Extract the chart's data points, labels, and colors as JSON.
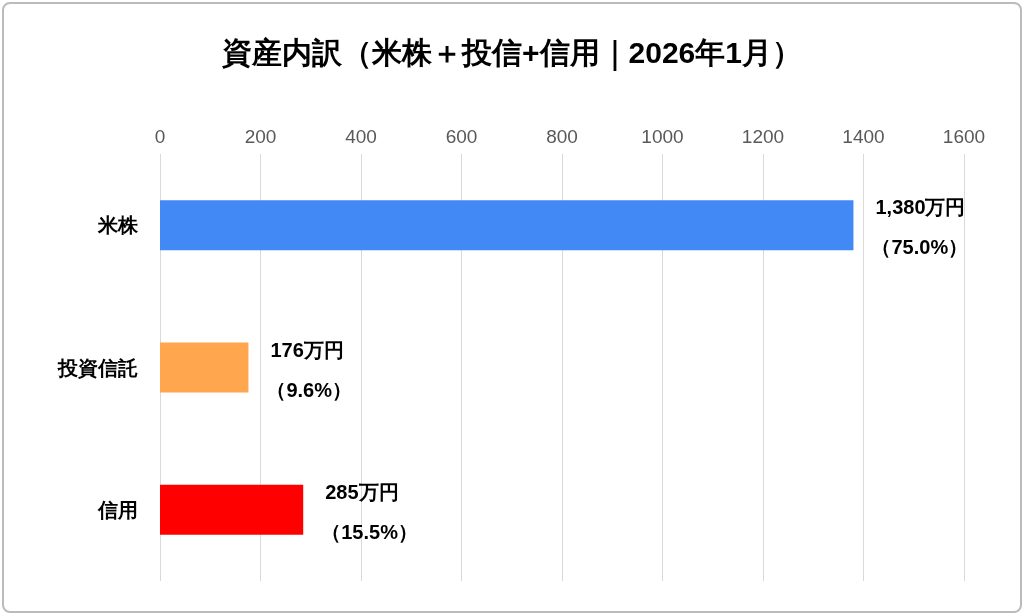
{
  "chart_data": {
    "type": "bar",
    "orientation": "horizontal",
    "title": "資産内訳（米株＋投信+信用｜2026年1月）",
    "categories": [
      "米株",
      "投資信託",
      "信用"
    ],
    "values": [
      1380,
      176,
      285
    ],
    "colors": [
      "#4289f5",
      "#ffa64f",
      "#ff0000"
    ],
    "value_labels": [
      "1,380万円",
      "176万円",
      "285万円"
    ],
    "annotations": [
      {
        "text": "（75.0%）",
        "x": 1380,
        "y": "米株"
      },
      {
        "text": "（9.6%）",
        "x": 176,
        "y": "投資信託"
      },
      {
        "text": "（15.5%）",
        "x": 285,
        "y": "信用"
      }
    ],
    "xlim": [
      0,
      1600
    ],
    "xticks": [
      0,
      200,
      400,
      600,
      800,
      1000,
      1200,
      1400,
      1600
    ],
    "grid": "x"
  }
}
